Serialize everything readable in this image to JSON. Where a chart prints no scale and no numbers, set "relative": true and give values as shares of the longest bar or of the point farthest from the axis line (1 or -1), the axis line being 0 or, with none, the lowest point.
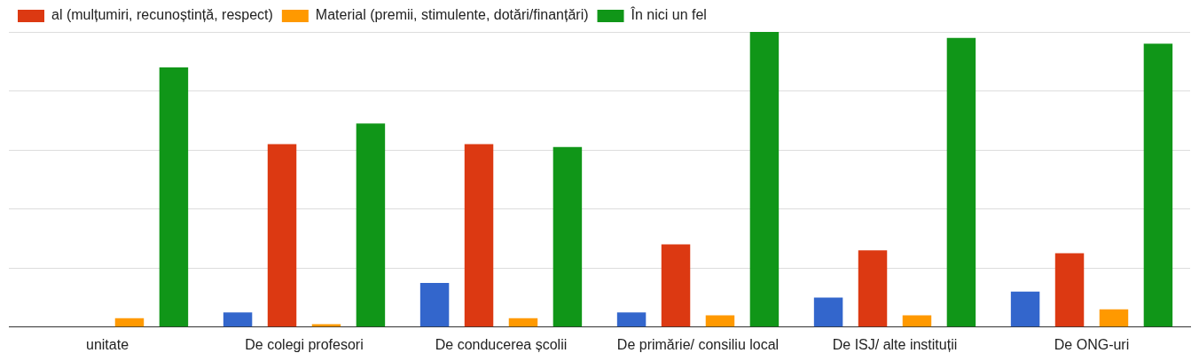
{
  "chart_data": {
    "type": "bar",
    "relative": true,
    "grid": "y",
    "legend": "top",
    "categories": [
      "unitate",
      "De colegi profesori",
      "De conducerea școlii",
      "De primărie/ consiliu local",
      "De ISJ/ alte instituții",
      "De ONG-uri"
    ],
    "series": [
      {
        "color": "#3366cc",
        "values": [
          null,
          0.05,
          0.15,
          0.05,
          0.1,
          0.12
        ]
      },
      {
        "name": "al (mulțumiri, recunoștință, respect)",
        "color": "#dc3912",
        "values": [
          null,
          0.62,
          0.62,
          0.28,
          0.26,
          0.25
        ]
      },
      {
        "name": "Material (premii, stimulente, dotări/finanțări)",
        "color": "#ff9900",
        "values": [
          0.03,
          0.01,
          0.03,
          0.04,
          0.04,
          0.06
        ]
      },
      {
        "name": "În nici un fel",
        "color": "#109618",
        "values": [
          0.88,
          0.69,
          0.61,
          1,
          0.98,
          0.96
        ]
      }
    ]
  }
}
